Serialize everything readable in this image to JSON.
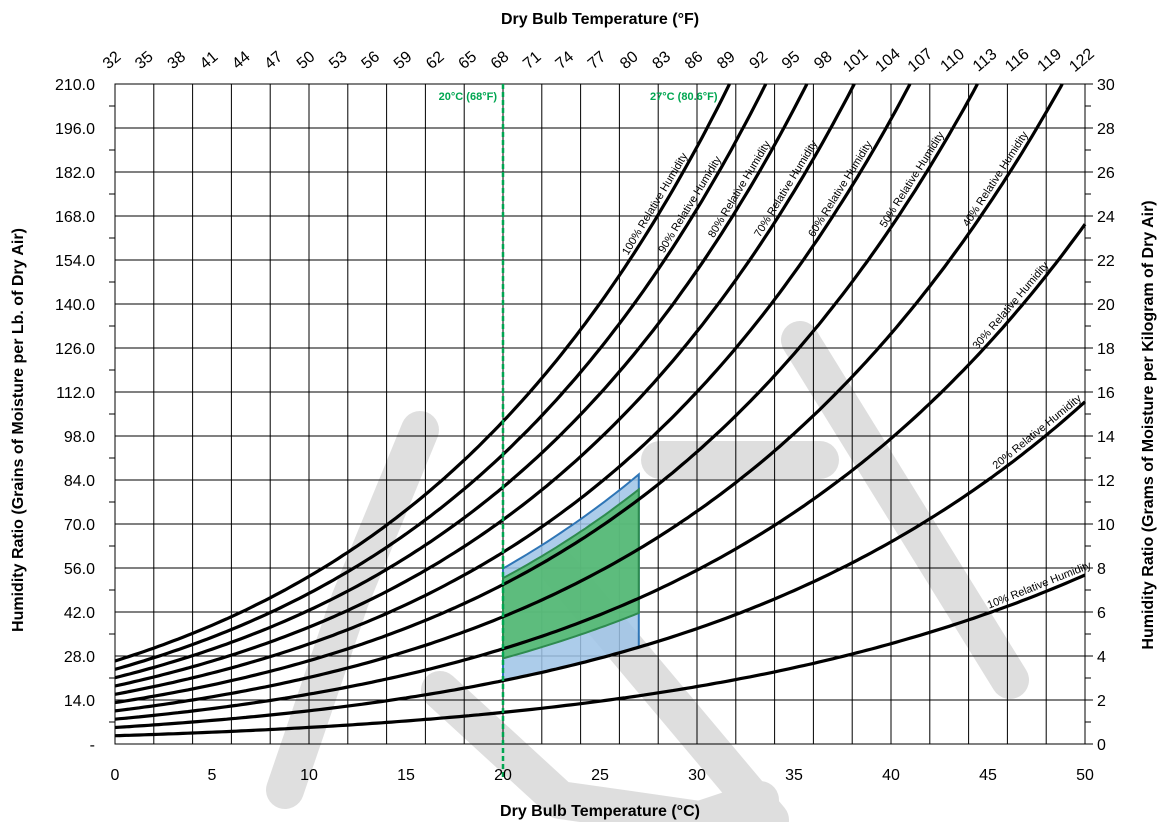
{
  "chart_data": {
    "type": "line",
    "title": "",
    "xlabel": "Dry Bulb Temperature (°C)",
    "x2label": "Dry Bulb Temperature (°F)",
    "ylabel": "Humidity Ratio (Grains of Moisture per Lb. of Dry Air)",
    "y2label": "Humidity Ratio (Grams of Moisture per Kilogram of Dry Air)",
    "xlim": [
      0,
      50
    ],
    "ylim_grains": [
      0,
      210
    ],
    "ylim_grams": [
      0,
      30
    ],
    "x_ticks": [
      "0",
      "5",
      "10",
      "15",
      "20",
      "25",
      "30",
      "35",
      "40",
      "45",
      "50"
    ],
    "x_tick_values": [
      0,
      5,
      10,
      15,
      20,
      25,
      30,
      35,
      40,
      45,
      50
    ],
    "x2_ticks": [
      "32",
      "35",
      "38",
      "41",
      "44",
      "47",
      "50",
      "53",
      "56",
      "59",
      "62",
      "65",
      "68",
      "71",
      "74",
      "77",
      "80",
      "83",
      "86",
      "89",
      "92",
      "95",
      "98",
      "101",
      "104",
      "107",
      "110",
      "113",
      "116",
      "119",
      "122"
    ],
    "y_ticks": [
      "-",
      "14.0",
      "28.0",
      "42.0",
      "56.0",
      "70.0",
      "84.0",
      "98.0",
      "112.0",
      "126.0",
      "140.0",
      "154.0",
      "168.0",
      "182.0",
      "196.0",
      "210.0"
    ],
    "y_tick_values": [
      0,
      14,
      28,
      42,
      56,
      70,
      84,
      98,
      112,
      126,
      140,
      154,
      168,
      182,
      196,
      210
    ],
    "y2_ticks": [
      "0",
      "2",
      "4",
      "6",
      "8",
      "10",
      "12",
      "14",
      "16",
      "18",
      "20",
      "22",
      "24",
      "26",
      "28",
      "30"
    ],
    "y2_tick_values": [
      0,
      2,
      4,
      6,
      8,
      10,
      12,
      14,
      16,
      18,
      20,
      22,
      24,
      26,
      28,
      30
    ],
    "grid": true,
    "series": [
      {
        "name": "10% Relative Humidity",
        "rh": 10
      },
      {
        "name": "20% Relative Humidity",
        "rh": 20
      },
      {
        "name": "30% Relative Humidity",
        "rh": 30
      },
      {
        "name": "40% Relative Humidity",
        "rh": 40
      },
      {
        "name": "50% Relative Humidity",
        "rh": 50
      },
      {
        "name": "60% Relative Humidity",
        "rh": 60
      },
      {
        "name": "70% Relative Humidity",
        "rh": 70
      },
      {
        "name": "80% Relative Humidity",
        "rh": 80
      },
      {
        "name": "90% Relative Humidity",
        "rh": 90
      },
      {
        "name": "100% Relative Humidity",
        "rh": 100
      }
    ],
    "reference_lines": [
      {
        "label": "20°C (68°F)",
        "x": 20,
        "color": "#00a651"
      },
      {
        "label": "27°C (80.6°F)",
        "x": 27,
        "color": "#00a651"
      }
    ],
    "regions": [
      {
        "name": "blue-zone",
        "x_range": [
          20,
          27
        ],
        "rh_lower": 20,
        "rh_upper": 55,
        "fill": "#9dc3e6",
        "stroke": "#2e75b6"
      },
      {
        "name": "green-zone",
        "x_range": [
          20,
          27
        ],
        "rh_lower": 27,
        "rh_upper": 52,
        "fill": "#4fb86a",
        "stroke": "#2e8b4f"
      }
    ],
    "colors": {
      "curve": "#000000",
      "reference": "#00a651",
      "watermark": "#d9d9d9"
    }
  }
}
